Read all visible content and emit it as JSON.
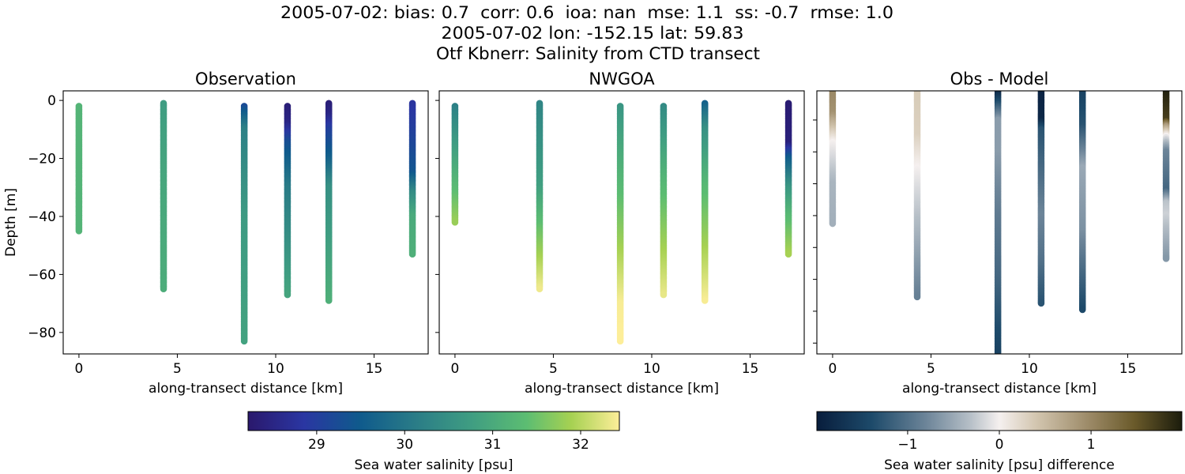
{
  "suptitle": [
    "2005-07-02: bias: 0.7  corr: 0.6  ioa: nan  mse: 1.1  ss: -0.7  rmse: 1.0",
    "2005-07-02 lon: -152.15 lat: 59.83",
    "Otf Kbnerr: Salinity from CTD transect"
  ],
  "colormaps": {
    "salinity": [
      [
        0,
        "#2a186c"
      ],
      [
        0.15,
        "#2a36a2"
      ],
      [
        0.3,
        "#0f5a8c"
      ],
      [
        0.45,
        "#2a7c87"
      ],
      [
        0.6,
        "#3f9d82"
      ],
      [
        0.75,
        "#5cbd72"
      ],
      [
        0.87,
        "#a6d152"
      ],
      [
        1,
        "#fdee99"
      ]
    ],
    "difference": [
      [
        0,
        "#081d3c"
      ],
      [
        0.15,
        "#1d4a6a"
      ],
      [
        0.3,
        "#6d8599"
      ],
      [
        0.42,
        "#b6bfc7"
      ],
      [
        0.5,
        "#f5f0ef"
      ],
      [
        0.6,
        "#d3c6b0"
      ],
      [
        0.75,
        "#9a8865"
      ],
      [
        0.87,
        "#6a5a2a"
      ],
      [
        1,
        "#1b1c0c"
      ]
    ]
  },
  "chart_data": [
    {
      "type": "scatter",
      "title": "Observation",
      "xlabel": "along-transect distance [km]",
      "ylabel": "Depth [m]",
      "xlim": [
        -0.8,
        17.75
      ],
      "ylim": [
        -87.4,
        3.3
      ],
      "xticks": [
        0,
        5,
        10,
        15
      ],
      "yticks": [
        0,
        -20,
        -40,
        -60,
        -80
      ],
      "ytick_labels": true,
      "colormap": "salinity",
      "clim": [
        28.22,
        32.44
      ],
      "profiles": [
        {
          "x": 0,
          "profile": [
            [
              -2,
              31.2
            ],
            [
              -45,
              31.2
            ]
          ]
        },
        {
          "x": 4.3,
          "profile": [
            [
              -1,
              30.75
            ],
            [
              -30,
              30.95
            ],
            [
              -65,
              31.05
            ]
          ]
        },
        {
          "x": 8.4,
          "profile": [
            [
              -2,
              29.2
            ],
            [
              -10,
              30.2
            ],
            [
              -40,
              30.7
            ],
            [
              -83,
              30.85
            ]
          ]
        },
        {
          "x": 10.6,
          "profile": [
            [
              -2,
              28.35
            ],
            [
              -8,
              28.5
            ],
            [
              -15,
              29.3
            ],
            [
              -30,
              30.1
            ],
            [
              -67,
              30.9
            ]
          ]
        },
        {
          "x": 12.7,
          "profile": [
            [
              -1,
              28.35
            ],
            [
              -5,
              28.5
            ],
            [
              -10,
              29.0
            ],
            [
              -20,
              29.6
            ],
            [
              -30,
              30.5
            ],
            [
              -69,
              31.1
            ]
          ]
        },
        {
          "x": 16.95,
          "profile": [
            [
              -1,
              28.8
            ],
            [
              -10,
              29.0
            ],
            [
              -25,
              29.4
            ],
            [
              -32,
              30.4
            ],
            [
              -40,
              31.0
            ],
            [
              -53,
              31.1
            ]
          ]
        }
      ]
    },
    {
      "type": "scatter",
      "title": "NWGOA",
      "xlabel": "along-transect distance [km]",
      "xlim": [
        -0.8,
        17.75
      ],
      "ylim": [
        -87.4,
        3.3
      ],
      "xticks": [
        0,
        5,
        10,
        15
      ],
      "yticks": [
        0,
        -20,
        -40,
        -60,
        -80
      ],
      "ytick_labels": false,
      "colormap": "salinity",
      "clim": [
        28.22,
        32.44
      ],
      "profiles": [
        {
          "x": 0,
          "profile": [
            [
              -2,
              30.2
            ],
            [
              -20,
              30.9
            ],
            [
              -42,
              31.8
            ]
          ]
        },
        {
          "x": 4.3,
          "profile": [
            [
              -1,
              30.3
            ],
            [
              -30,
              30.8
            ],
            [
              -45,
              31.5
            ],
            [
              -65,
              32.35
            ]
          ]
        },
        {
          "x": 8.4,
          "profile": [
            [
              -2,
              30.6
            ],
            [
              -30,
              31.3
            ],
            [
              -45,
              31.7
            ],
            [
              -70,
              32.4
            ],
            [
              -83,
              32.45
            ]
          ]
        },
        {
          "x": 10.6,
          "profile": [
            [
              -2,
              30.4
            ],
            [
              -30,
              31.3
            ],
            [
              -67,
              32.3
            ]
          ]
        },
        {
          "x": 12.7,
          "profile": [
            [
              -1,
              29.6
            ],
            [
              -10,
              30.5
            ],
            [
              -30,
              31.3
            ],
            [
              -69,
              32.4
            ]
          ]
        },
        {
          "x": 16.95,
          "profile": [
            [
              -1,
              28.3
            ],
            [
              -15,
              28.4
            ],
            [
              -20,
              29.5
            ],
            [
              -30,
              30.6
            ],
            [
              -40,
              31.3
            ],
            [
              -53,
              31.9
            ]
          ]
        }
      ]
    },
    {
      "type": "scatter",
      "title": "Obs - Model",
      "xlabel": "along-transect distance [km]",
      "xlim": [
        -0.8,
        17.75
      ],
      "ylim": [
        -83.4,
        -0.85
      ],
      "xticks": [
        0,
        5,
        10,
        15
      ],
      "yticks": [
        -10,
        -20,
        -30,
        -40,
        -50,
        -60,
        -70,
        -80
      ],
      "ytick_labels": false,
      "colormap": "difference",
      "clim": [
        -1.99,
        1.99
      ],
      "profiles": [
        {
          "x": 0,
          "profile": [
            [
              -1,
              1.0
            ],
            [
              -8,
              0.9
            ],
            [
              -17,
              0.0
            ],
            [
              -30,
              -0.4
            ],
            [
              -42.6,
              -0.45
            ]
          ]
        },
        {
          "x": 4.3,
          "profile": [
            [
              -1,
              0.35
            ],
            [
              -15,
              0.3
            ],
            [
              -25,
              0.0
            ],
            [
              -45,
              -0.4
            ],
            [
              -65.6,
              -0.85
            ]
          ]
        },
        {
          "x": 8.4,
          "profile": [
            [
              -1,
              -1.9
            ],
            [
              -3,
              -1.6
            ],
            [
              -10,
              -0.6
            ],
            [
              -20,
              -0.6
            ],
            [
              -40,
              -0.9
            ],
            [
              -60,
              -1.1
            ],
            [
              -83,
              -1.5
            ]
          ]
        },
        {
          "x": 10.6,
          "profile": [
            [
              -1,
              -1.9
            ],
            [
              -10,
              -1.85
            ],
            [
              -13,
              -1.3
            ],
            [
              -30,
              -1.0
            ],
            [
              -40,
              -0.8
            ],
            [
              -55,
              -1.0
            ],
            [
              -67.8,
              -1.3
            ]
          ]
        },
        {
          "x": 12.7,
          "profile": [
            [
              -1,
              -1.5
            ],
            [
              -12,
              -1.3
            ],
            [
              -25,
              -0.5
            ],
            [
              -45,
              -0.7
            ],
            [
              -69.5,
              -1.4
            ]
          ]
        },
        {
          "x": 16.95,
          "profile": [
            [
              -1,
              1.95
            ],
            [
              -10,
              1.7
            ],
            [
              -12,
              0.8
            ],
            [
              -15,
              0.0
            ],
            [
              -20,
              -0.8
            ],
            [
              -32,
              -1.1
            ],
            [
              -36,
              -0.3
            ],
            [
              -40,
              -0.2
            ],
            [
              -53.7,
              -0.65
            ]
          ]
        }
      ]
    }
  ],
  "colorbars": [
    {
      "label": "Sea water salinity [psu]",
      "colormap": "salinity",
      "range": [
        28.22,
        32.44
      ],
      "ticks": [
        29,
        30,
        31,
        32
      ],
      "tick_labels": [
        "29",
        "30",
        "31",
        "32"
      ]
    },
    {
      "label": "Sea water salinity [psu] difference",
      "colormap": "difference",
      "range": [
        -1.99,
        1.99
      ],
      "ticks": [
        -1,
        0,
        1
      ],
      "tick_labels": [
        "−1",
        "0",
        "1"
      ]
    }
  ]
}
